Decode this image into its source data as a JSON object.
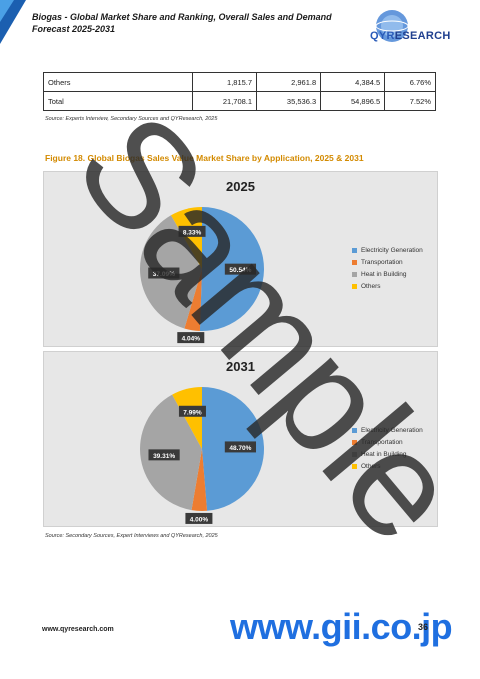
{
  "header": {
    "title": "Biogas - Global Market Share and Ranking, Overall Sales and Demand Forecast 2025-2031",
    "logo_text_bold": "QYR",
    "logo_text_rest": "ESEARCH"
  },
  "table": {
    "rows": [
      {
        "label": "Others",
        "v1": "1,815.7",
        "v2": "2,961.8",
        "v3": "4,384.5",
        "v4": "6.76%"
      },
      {
        "label": "Total",
        "v1": "21,708.1",
        "v2": "35,536.3",
        "v3": "54,896.5",
        "v4": "7.52%"
      }
    ]
  },
  "source1": "Source: Experts Interview, Secondary Sources and QYResearch, 2025",
  "figure_title": "Figure 18.   Global Biogas Sales Value Market Share by Application, 2025 & 2031",
  "chart_data": [
    {
      "type": "pie",
      "title": "2025",
      "categories": [
        "Electricity Generation",
        "Transportation",
        "Heat in Building",
        "Others"
      ],
      "values": [
        50.54,
        4.04,
        37.09,
        8.33
      ],
      "labels": [
        "50.54%",
        "4.04%",
        "37.09%",
        "8.33%"
      ],
      "colors": [
        "#5b9bd5",
        "#ed7d31",
        "#a5a5a5",
        "#ffc000"
      ],
      "legend": "right"
    },
    {
      "type": "pie",
      "title": "2031",
      "categories": [
        "Electricity Generation",
        "Transportation",
        "Heat in Building",
        "Others"
      ],
      "values": [
        48.7,
        4.0,
        39.31,
        7.99
      ],
      "labels": [
        "48.70%",
        "4.00%",
        "39.31%",
        "7.99%"
      ],
      "colors": [
        "#5b9bd5",
        "#ed7d31",
        "#a5a5a5",
        "#ffc000"
      ],
      "legend": "right"
    }
  ],
  "source2": "Source: Secondary Sources, Expert Interviews and QYResearch, 2025",
  "footer": {
    "url": "www.qyresearch.com",
    "watermark_site": "www.gii.co.jp",
    "page": "36"
  },
  "watermark": "Sample"
}
